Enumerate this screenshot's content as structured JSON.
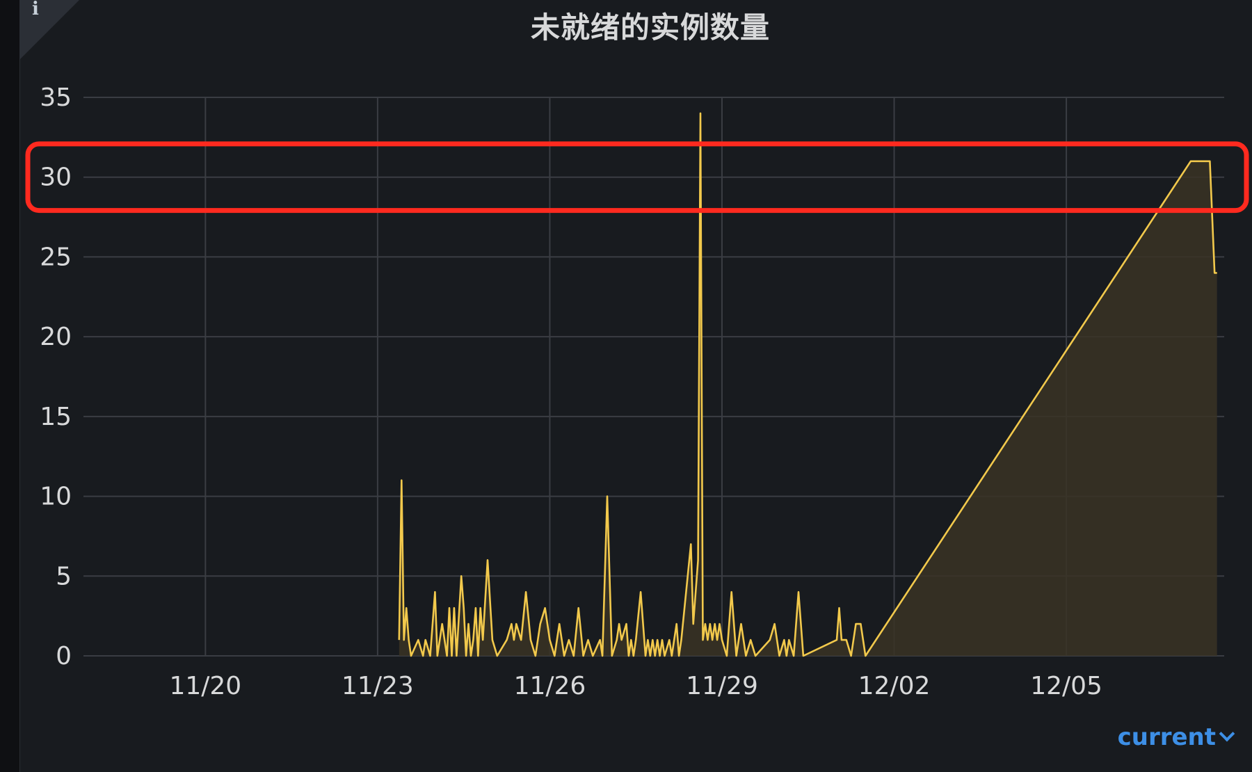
{
  "panel": {
    "info_icon": "info-icon",
    "legend_mode": "current"
  },
  "colors": {
    "background": "#181b1f",
    "grid": "#3a3d43",
    "series": "#f2c94c",
    "area_fill": "#3a3324",
    "highlight_box": "#ff2a1f",
    "legend_link": "#3d8fe6"
  },
  "chart_data": {
    "type": "area",
    "title": "未就绪的实例数量",
    "xlabel": "",
    "ylabel": "",
    "ylim": [
      0,
      35
    ],
    "yticks": [
      0,
      5,
      10,
      15,
      20,
      25,
      30,
      35
    ],
    "xticks": [
      "11/20",
      "11/23",
      "11/26",
      "11/29",
      "12/02",
      "12/05"
    ],
    "xlim": [
      "2023-11-17T21:00",
      "2023-12-07T18:00"
    ],
    "grid": true,
    "highlight_band": [
      28,
      32
    ],
    "series": [
      {
        "points": [
          [
            "2023-11-23T09:00",
            1
          ],
          [
            "2023-11-23T10:00",
            11
          ],
          [
            "2023-11-23T11:00",
            1
          ],
          [
            "2023-11-23T12:00",
            3
          ],
          [
            "2023-11-23T13:00",
            1
          ],
          [
            "2023-11-23T14:00",
            0
          ],
          [
            "2023-11-23T17:00",
            1
          ],
          [
            "2023-11-23T19:00",
            0
          ],
          [
            "2023-11-23T20:00",
            1
          ],
          [
            "2023-11-23T22:00",
            0
          ],
          [
            "2023-11-24T00:00",
            4
          ],
          [
            "2023-11-24T01:00",
            0
          ],
          [
            "2023-11-24T03:00",
            2
          ],
          [
            "2023-11-24T05:00",
            0
          ],
          [
            "2023-11-24T06:00",
            3
          ],
          [
            "2023-11-24T07:00",
            0
          ],
          [
            "2023-11-24T08:00",
            3
          ],
          [
            "2023-11-24T09:00",
            0
          ],
          [
            "2023-11-24T11:00",
            5
          ],
          [
            "2023-11-24T12:00",
            3
          ],
          [
            "2023-11-24T13:00",
            0
          ],
          [
            "2023-11-24T14:00",
            2
          ],
          [
            "2023-11-24T15:00",
            0
          ],
          [
            "2023-11-24T16:00",
            1
          ],
          [
            "2023-11-24T17:00",
            3
          ],
          [
            "2023-11-24T18:00",
            0
          ],
          [
            "2023-11-24T19:00",
            3
          ],
          [
            "2023-11-24T20:00",
            1
          ],
          [
            "2023-11-24T22:00",
            6
          ],
          [
            "2023-11-25T00:00",
            1
          ],
          [
            "2023-11-25T02:00",
            0
          ],
          [
            "2023-11-25T06:00",
            1
          ],
          [
            "2023-11-25T08:00",
            2
          ],
          [
            "2023-11-25T09:00",
            1
          ],
          [
            "2023-11-25T10:00",
            2
          ],
          [
            "2023-11-25T12:00",
            1
          ],
          [
            "2023-11-25T14:00",
            4
          ],
          [
            "2023-11-25T16:00",
            1
          ],
          [
            "2023-11-25T18:00",
            0
          ],
          [
            "2023-11-25T20:00",
            2
          ],
          [
            "2023-11-25T22:00",
            3
          ],
          [
            "2023-11-26T00:00",
            1
          ],
          [
            "2023-11-26T02:00",
            0
          ],
          [
            "2023-11-26T04:00",
            2
          ],
          [
            "2023-11-26T06:00",
            0
          ],
          [
            "2023-11-26T08:00",
            1
          ],
          [
            "2023-11-26T10:00",
            0
          ],
          [
            "2023-11-26T12:00",
            3
          ],
          [
            "2023-11-26T14:00",
            0
          ],
          [
            "2023-11-26T16:00",
            1
          ],
          [
            "2023-11-26T18:00",
            0
          ],
          [
            "2023-11-26T21:00",
            1
          ],
          [
            "2023-11-26T22:00",
            0
          ],
          [
            "2023-11-27T00:00",
            10
          ],
          [
            "2023-11-27T02:00",
            0
          ],
          [
            "2023-11-27T04:00",
            1
          ],
          [
            "2023-11-27T05:00",
            2
          ],
          [
            "2023-11-27T06:00",
            1
          ],
          [
            "2023-11-27T08:00",
            2
          ],
          [
            "2023-11-27T09:00",
            0
          ],
          [
            "2023-11-27T10:00",
            1
          ],
          [
            "2023-11-27T11:00",
            0
          ],
          [
            "2023-11-27T12:00",
            1
          ],
          [
            "2023-11-27T14:00",
            4
          ],
          [
            "2023-11-27T16:00",
            0
          ],
          [
            "2023-11-27T17:00",
            1
          ],
          [
            "2023-11-27T18:00",
            0
          ],
          [
            "2023-11-27T19:00",
            1
          ],
          [
            "2023-11-27T20:00",
            0
          ],
          [
            "2023-11-27T21:00",
            1
          ],
          [
            "2023-11-27T22:00",
            0
          ],
          [
            "2023-11-27T23:00",
            1
          ],
          [
            "2023-11-28T00:00",
            0
          ],
          [
            "2023-11-28T02:00",
            1
          ],
          [
            "2023-11-28T03:00",
            0
          ],
          [
            "2023-11-28T05:00",
            2
          ],
          [
            "2023-11-28T06:00",
            0
          ],
          [
            "2023-11-28T07:00",
            1
          ],
          [
            "2023-11-28T09:00",
            4
          ],
          [
            "2023-11-28T11:00",
            7
          ],
          [
            "2023-11-28T12:00",
            2
          ],
          [
            "2023-11-28T14:00",
            6
          ],
          [
            "2023-11-28T15:00",
            34
          ],
          [
            "2023-11-28T16:00",
            1
          ],
          [
            "2023-11-28T17:00",
            2
          ],
          [
            "2023-11-28T18:00",
            1
          ],
          [
            "2023-11-28T19:00",
            2
          ],
          [
            "2023-11-28T20:00",
            1
          ],
          [
            "2023-11-28T21:00",
            2
          ],
          [
            "2023-11-28T22:00",
            1
          ],
          [
            "2023-11-28T23:00",
            2
          ],
          [
            "2023-11-29T00:00",
            1
          ],
          [
            "2023-11-29T02:00",
            0
          ],
          [
            "2023-11-29T04:00",
            4
          ],
          [
            "2023-11-29T06:00",
            0
          ],
          [
            "2023-11-29T08:00",
            2
          ],
          [
            "2023-11-29T10:00",
            0
          ],
          [
            "2023-11-29T12:00",
            1
          ],
          [
            "2023-11-29T14:00",
            0
          ],
          [
            "2023-11-29T20:00",
            1
          ],
          [
            "2023-11-29T22:00",
            2
          ],
          [
            "2023-11-30T00:00",
            0
          ],
          [
            "2023-11-30T02:00",
            1
          ],
          [
            "2023-11-30T03:00",
            0
          ],
          [
            "2023-11-30T04:00",
            1
          ],
          [
            "2023-11-30T06:00",
            0
          ],
          [
            "2023-11-30T08:00",
            4
          ],
          [
            "2023-11-30T10:00",
            0
          ],
          [
            "2023-12-01T00:00",
            1
          ],
          [
            "2023-12-01T01:00",
            3
          ],
          [
            "2023-12-01T02:00",
            1
          ],
          [
            "2023-12-01T04:00",
            1
          ],
          [
            "2023-12-01T06:00",
            0
          ],
          [
            "2023-12-01T08:00",
            2
          ],
          [
            "2023-12-01T10:00",
            2
          ],
          [
            "2023-12-01T12:00",
            0
          ],
          [
            "2023-12-07T04:00",
            31
          ],
          [
            "2023-12-07T12:00",
            31
          ],
          [
            "2023-12-07T14:00",
            24
          ],
          [
            "2023-12-07T15:00",
            24
          ]
        ]
      }
    ]
  }
}
